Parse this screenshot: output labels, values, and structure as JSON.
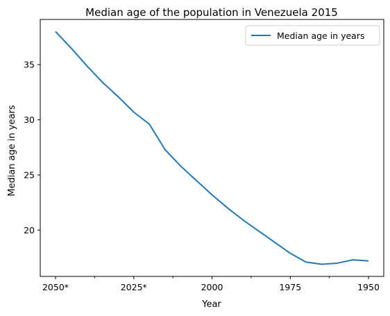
{
  "chart_data": {
    "type": "line",
    "title": "Median age of the population in Venezuela 2015",
    "xlabel": "Year",
    "ylabel": "Median age in years",
    "x": [
      "2050*",
      "2045*",
      "2040*",
      "2035*",
      "2030*",
      "2025*",
      "2020*",
      "2015",
      "2010",
      "2005",
      "2000",
      "1995",
      "1990",
      "1985",
      "1980",
      "1975",
      "1970",
      "1965",
      "1960",
      "1955",
      "1950"
    ],
    "x_tick_labels": [
      "2050*",
      "2025*",
      "2000",
      "1975",
      "1950"
    ],
    "series": [
      {
        "name": "Median age in years",
        "values": [
          38.0,
          36.5,
          34.9,
          33.4,
          32.1,
          30.7,
          29.6,
          27.3,
          25.8,
          24.5,
          23.2,
          22.0,
          20.9,
          19.9,
          18.9,
          17.9,
          17.1,
          16.9,
          17.0,
          17.3,
          17.2
        ]
      }
    ],
    "y_ticks": [
      20,
      25,
      30,
      35
    ],
    "ylim": [
      15.8,
      39.1
    ],
    "grid": false,
    "legend_position": "top-right",
    "colors": {
      "series": "#1f77b4",
      "axes": "#000000"
    }
  }
}
